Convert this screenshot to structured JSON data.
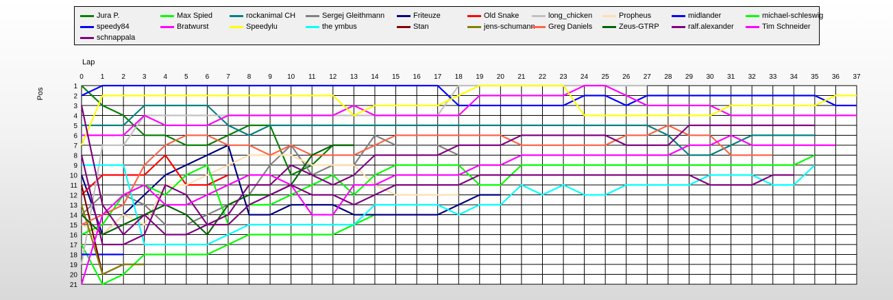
{
  "chart_data": {
    "type": "line",
    "xlabel": "Lap",
    "ylabel": "Pos",
    "xlim": [
      0,
      37
    ],
    "ylim": [
      1,
      21
    ],
    "y_inverted": true,
    "grid": true,
    "legend_position": "top",
    "x_ticks": [
      0,
      1,
      2,
      3,
      4,
      5,
      6,
      7,
      8,
      9,
      10,
      11,
      12,
      13,
      14,
      15,
      16,
      17,
      18,
      19,
      20,
      21,
      22,
      23,
      24,
      25,
      26,
      27,
      28,
      29,
      30,
      31,
      32,
      33,
      34,
      35,
      36,
      37
    ],
    "y_ticks": [
      1,
      2,
      3,
      4,
      5,
      6,
      7,
      8,
      9,
      10,
      11,
      12,
      13,
      14,
      15,
      16,
      17,
      18,
      19,
      20,
      21
    ],
    "series": [
      {
        "name": "Jura P.",
        "color": "#008000",
        "values": [
          1,
          3,
          4,
          6,
          6,
          7,
          7,
          6,
          5,
          5,
          10,
          9,
          7,
          7
        ]
      },
      {
        "name": "Max Spied",
        "color": "#00ff00",
        "values": [
          17,
          21,
          20,
          18,
          18,
          18,
          18,
          17,
          16,
          16,
          16,
          16,
          16,
          15,
          14
        ]
      },
      {
        "name": "rockanimal CH",
        "color": "#008080",
        "values": [
          5,
          5,
          5,
          3,
          3,
          3,
          3,
          5,
          6,
          5,
          5,
          5,
          5,
          5,
          5,
          5,
          5,
          5,
          5,
          5,
          5,
          5,
          5,
          5,
          5,
          5,
          5,
          5,
          6,
          8,
          8,
          7,
          6,
          6,
          6,
          6
        ]
      },
      {
        "name": "Sergej Gleithmann",
        "color": "#808080",
        "values": [
          14,
          12,
          12,
          13,
          15,
          15,
          14,
          13,
          12,
          9,
          7,
          10,
          9,
          9,
          6,
          7,
          7,
          7,
          8
        ]
      },
      {
        "name": "Friteuze",
        "color": "#000080",
        "values": [
          10,
          16,
          14,
          12,
          10,
          9,
          8,
          7,
          14,
          14,
          13,
          13,
          13,
          14,
          14,
          14,
          14,
          14,
          13,
          12,
          12
        ]
      },
      {
        "name": "Old Snake",
        "color": "#ff0000",
        "values": [
          12,
          10,
          10,
          10,
          8,
          11,
          11,
          10
        ]
      },
      {
        "name": "long_chicken",
        "color": "#c0c0c0",
        "values": [
          19,
          7,
          7,
          4,
          4,
          4,
          4,
          4,
          4,
          4,
          4,
          4,
          4,
          4,
          4,
          4,
          4,
          4,
          1,
          1,
          1,
          1,
          1,
          1,
          1,
          1,
          1,
          1
        ]
      },
      {
        "name": "Propheus",
        "color": "#ffdead",
        "values": [
          15,
          16,
          14,
          15,
          11,
          11,
          10,
          9,
          8,
          8,
          8,
          9,
          9,
          9,
          11,
          12,
          12,
          12,
          12
        ]
      },
      {
        "name": "midlander",
        "color": "#0000ff",
        "values": [
          2,
          1,
          1,
          1,
          1,
          1,
          1,
          1,
          1,
          1,
          1,
          1,
          1,
          1,
          1,
          1,
          1,
          1,
          3,
          3,
          3,
          3,
          3,
          3,
          2,
          2,
          3,
          2,
          2,
          2,
          2,
          2,
          2,
          2,
          2,
          2,
          3,
          3
        ]
      },
      {
        "name": "michael-schleswig",
        "color": "#00ff00",
        "values": [
          16,
          15,
          12,
          11,
          12,
          10,
          9,
          15,
          13,
          13,
          12,
          11,
          10,
          12,
          10,
          9,
          9,
          9,
          9,
          11,
          11,
          9,
          9,
          9,
          9,
          9,
          9,
          9,
          9,
          9,
          9,
          9,
          9,
          9,
          9,
          8
        ]
      },
      {
        "name": "speedy84",
        "color": "#0000ff",
        "values": [
          18,
          18,
          18
        ]
      },
      {
        "name": "Bratwurst",
        "color": "#ff00ff",
        "values": [
          6,
          6,
          6,
          4,
          5,
          5,
          5,
          4,
          4,
          4,
          4,
          4,
          4,
          3,
          4,
          4,
          4,
          4,
          4,
          2,
          2,
          2,
          2,
          2,
          1,
          1,
          2,
          3,
          3,
          3,
          3,
          4,
          4,
          4,
          4,
          4,
          4,
          4
        ]
      },
      {
        "name": "Speedylu",
        "color": "#ffff00",
        "values": [
          7,
          2,
          2,
          2,
          2,
          2,
          2,
          2,
          2,
          2,
          2,
          2,
          2,
          4,
          3,
          3,
          3,
          3,
          2,
          1,
          1,
          1,
          1,
          1,
          4,
          4,
          4,
          4,
          4,
          4,
          4,
          3,
          3,
          3,
          3,
          3,
          2,
          2
        ]
      },
      {
        "name": "the ymbus",
        "color": "#00ffff",
        "values": [
          9,
          9,
          9,
          17,
          17,
          17,
          17,
          16,
          15,
          15,
          15,
          15,
          15,
          15,
          13,
          13,
          13,
          13,
          14,
          13,
          13,
          11,
          12,
          11,
          12,
          12,
          11,
          11,
          11,
          11,
          10,
          10,
          10,
          11,
          11,
          9
        ]
      },
      {
        "name": "Stan",
        "color": "#800000",
        "values": [
          11,
          20,
          19,
          19
        ]
      },
      {
        "name": "jens-schumann",
        "color": "#808000",
        "values": [
          13,
          20,
          19,
          19
        ]
      },
      {
        "name": "Greg Daniels",
        "color": "#ff6347",
        "values": [
          15,
          14,
          13,
          9,
          7,
          6,
          6,
          7,
          7,
          8,
          7,
          8,
          8,
          8,
          7,
          6,
          6,
          6,
          6,
          6,
          6,
          7,
          7,
          7,
          7,
          7,
          6,
          6,
          5,
          6,
          6,
          8,
          8,
          8
        ]
      },
      {
        "name": "Zeus-GTRP",
        "color": "#006400",
        "values": [
          14,
          16,
          15,
          14,
          13,
          14,
          16,
          13,
          12,
          12,
          11,
          8,
          7,
          7
        ]
      },
      {
        "name": "ralf.alexander",
        "color": "#800080",
        "values": [
          8,
          17,
          17,
          16,
          11,
          12,
          15,
          14,
          11,
          11,
          9,
          10,
          11,
          10,
          8,
          8,
          8,
          8,
          7,
          7,
          7,
          6,
          6,
          6,
          6,
          6,
          7,
          7,
          7,
          5,
          5,
          5,
          5,
          5,
          5,
          5
        ]
      },
      {
        "name": "Tim Schneider",
        "color": "#ff00ff",
        "values": [
          21,
          14,
          12,
          11,
          13,
          13,
          12,
          11,
          10,
          10,
          11,
          14,
          14,
          11,
          11,
          10,
          10,
          10,
          10,
          9,
          9,
          8,
          8,
          8,
          8,
          8,
          8,
          8,
          8,
          7,
          7,
          6,
          7,
          7,
          7,
          7,
          7
        ]
      },
      {
        "name": "schnappala",
        "color": "#800080",
        "values": [
          3,
          13,
          16,
          14,
          16,
          16,
          15,
          15,
          13,
          12,
          11,
          12,
          12,
          13,
          12,
          11,
          11,
          11,
          11,
          10,
          10,
          10,
          10,
          10,
          10,
          10,
          10,
          10,
          10,
          10,
          11,
          11,
          11,
          10,
          10
        ]
      }
    ]
  }
}
